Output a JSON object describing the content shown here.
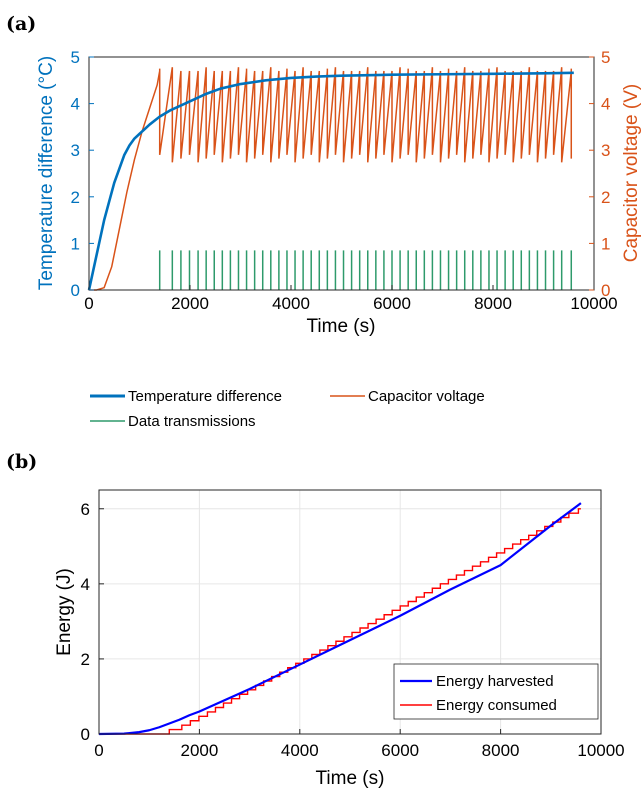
{
  "colors": {
    "temperature": "#0072BD",
    "capacitor": "#D95319",
    "transmission": "#2E9A6B",
    "harvested": "#0000FF",
    "consumed": "#FF0000",
    "grid": "#E6E6E6"
  },
  "chart_data": [
    {
      "panel": "(a)",
      "type": "line",
      "xlabel": "Time (s)",
      "ylabel": "Temperature difference (°C)",
      "ylabel_right": "Capacitor voltage (V)",
      "xlim": [
        0,
        10000
      ],
      "ylim": [
        0,
        5
      ],
      "ylim_right": [
        0,
        5
      ],
      "x_ticks": [
        "0",
        "2000",
        "4000",
        "6000",
        "8000",
        "10000"
      ],
      "y_ticks": [
        "0",
        "1",
        "2",
        "3",
        "4",
        "5"
      ],
      "y_ticks_right": [
        "0",
        "1",
        "2",
        "3",
        "4",
        "5"
      ],
      "grid": false,
      "legend_position": "below",
      "series": [
        {
          "name": "Temperature difference",
          "axis": "left",
          "x": [
            0,
            100,
            200,
            300,
            400,
            500,
            600,
            700,
            800,
            900,
            1000,
            1200,
            1400,
            1600,
            1800,
            2000,
            2300,
            2600,
            3000,
            3500,
            4000,
            4500,
            5000,
            6000,
            7000,
            8000,
            9000,
            9600
          ],
          "y": [
            0,
            0.5,
            1.0,
            1.5,
            1.9,
            2.3,
            2.6,
            2.9,
            3.1,
            3.25,
            3.35,
            3.55,
            3.72,
            3.85,
            3.95,
            4.05,
            4.2,
            4.32,
            4.42,
            4.5,
            4.55,
            4.58,
            4.6,
            4.62,
            4.63,
            4.64,
            4.65,
            4.66
          ]
        },
        {
          "name": "Capacitor voltage",
          "axis": "right",
          "x": [
            0,
            150,
            300,
            450,
            600,
            750,
            900,
            1050,
            1200,
            1350,
            1400
          ],
          "y": [
            0,
            0,
            0.05,
            0.5,
            1.3,
            2.1,
            2.8,
            3.4,
            3.9,
            4.4,
            4.7
          ],
          "sawtooth_after_x": 1400,
          "sawtooth_top": 4.7,
          "sawtooth_bottom": 2.8
        },
        {
          "name": "Data transmissions",
          "axis": "right",
          "height": 0.85,
          "x": [
            1400,
            1650,
            1820,
            1990,
            2160,
            2320,
            2480,
            2640,
            2800,
            2960,
            3120,
            3280,
            3440,
            3600,
            3760,
            3920,
            4080,
            4240,
            4400,
            4560,
            4720,
            4880,
            5040,
            5200,
            5360,
            5520,
            5680,
            5840,
            6000,
            6160,
            6320,
            6480,
            6640,
            6800,
            6960,
            7120,
            7280,
            7440,
            7600,
            7760,
            7920,
            8080,
            8240,
            8400,
            8560,
            8720,
            8880,
            9040,
            9200,
            9360,
            9550
          ]
        }
      ]
    },
    {
      "panel": "(b)",
      "type": "line",
      "xlabel": "Time (s)",
      "ylabel": "Energy (J)",
      "xlim": [
        0,
        10000
      ],
      "ylim": [
        0,
        6.5
      ],
      "x_ticks": [
        "0",
        "2000",
        "4000",
        "6000",
        "8000",
        "10000"
      ],
      "y_ticks": [
        "0",
        "2",
        "4",
        "6"
      ],
      "grid": true,
      "legend_position": "bottom-right",
      "series": [
        {
          "name": "Energy harvested",
          "x": [
            0,
            500,
            800,
            1000,
            1200,
            1400,
            1600,
            1800,
            2000,
            3000,
            4000,
            5000,
            6000,
            7000,
            8000,
            9000,
            9600
          ],
          "y": [
            0,
            0.01,
            0.05,
            0.1,
            0.18,
            0.28,
            0.38,
            0.5,
            0.6,
            1.2,
            1.85,
            2.5,
            3.15,
            3.85,
            4.5,
            5.55,
            6.15
          ]
        },
        {
          "name": "Energy consumed",
          "step_times": [
            1400,
            1650,
            1820,
            1990,
            2160,
            2320,
            2480,
            2640,
            2800,
            2960,
            3120,
            3280,
            3440,
            3600,
            3760,
            3920,
            4080,
            4240,
            4400,
            4560,
            4720,
            4880,
            5040,
            5200,
            5360,
            5520,
            5680,
            5840,
            6000,
            6160,
            6320,
            6480,
            6640,
            6800,
            6960,
            7120,
            7280,
            7440,
            7600,
            7760,
            7920,
            8080,
            8240,
            8400,
            8560,
            8720,
            8880,
            9040,
            9200,
            9360,
            9550
          ],
          "x_end": 9600,
          "y_end": 6.0
        }
      ]
    }
  ]
}
